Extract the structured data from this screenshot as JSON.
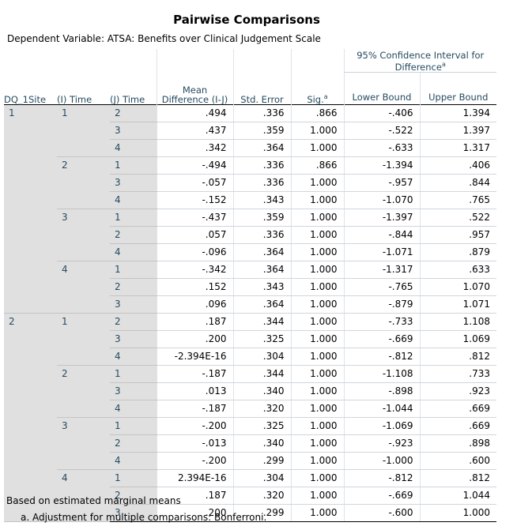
{
  "title": "Pairwise Comparisons",
  "dependent_variable": "Dependent Variable:   ATSA: Benefits over Clinical Judgement Scale",
  "headers": {
    "site": "DQ_1Site",
    "i_time": "(I) Time",
    "j_time": "(J) Time",
    "mean_diff": "Mean Difference (I-J)",
    "std_error": "Std. Error",
    "sig": "Sig.",
    "sig_sup": "a",
    "ci_group": "95% Confidence Interval for Difference",
    "ci_sup": "a",
    "lower": "Lower Bound",
    "upper": "Upper Bound"
  },
  "rows": [
    {
      "site": "1",
      "i": "1",
      "j": "2",
      "md": ".494",
      "se": ".336",
      "sig": ".866",
      "lb": "-.406",
      "ub": "1.394"
    },
    {
      "site": "",
      "i": "",
      "j": "3",
      "md": ".437",
      "se": ".359",
      "sig": "1.000",
      "lb": "-.522",
      "ub": "1.397"
    },
    {
      "site": "",
      "i": "",
      "j": "4",
      "md": ".342",
      "se": ".364",
      "sig": "1.000",
      "lb": "-.633",
      "ub": "1.317"
    },
    {
      "site": "",
      "i": "2",
      "j": "1",
      "md": "-.494",
      "se": ".336",
      "sig": ".866",
      "lb": "-1.394",
      "ub": ".406"
    },
    {
      "site": "",
      "i": "",
      "j": "3",
      "md": "-.057",
      "se": ".336",
      "sig": "1.000",
      "lb": "-.957",
      "ub": ".844"
    },
    {
      "site": "",
      "i": "",
      "j": "4",
      "md": "-.152",
      "se": ".343",
      "sig": "1.000",
      "lb": "-1.070",
      "ub": ".765"
    },
    {
      "site": "",
      "i": "3",
      "j": "1",
      "md": "-.437",
      "se": ".359",
      "sig": "1.000",
      "lb": "-1.397",
      "ub": ".522"
    },
    {
      "site": "",
      "i": "",
      "j": "2",
      "md": ".057",
      "se": ".336",
      "sig": "1.000",
      "lb": "-.844",
      "ub": ".957"
    },
    {
      "site": "",
      "i": "",
      "j": "4",
      "md": "-.096",
      "se": ".364",
      "sig": "1.000",
      "lb": "-1.071",
      "ub": ".879"
    },
    {
      "site": "",
      "i": "4",
      "j": "1",
      "md": "-.342",
      "se": ".364",
      "sig": "1.000",
      "lb": "-1.317",
      "ub": ".633"
    },
    {
      "site": "",
      "i": "",
      "j": "2",
      "md": ".152",
      "se": ".343",
      "sig": "1.000",
      "lb": "-.765",
      "ub": "1.070"
    },
    {
      "site": "",
      "i": "",
      "j": "3",
      "md": ".096",
      "se": ".364",
      "sig": "1.000",
      "lb": "-.879",
      "ub": "1.071"
    },
    {
      "site": "2",
      "i": "1",
      "j": "2",
      "md": ".187",
      "se": ".344",
      "sig": "1.000",
      "lb": "-.733",
      "ub": "1.108"
    },
    {
      "site": "",
      "i": "",
      "j": "3",
      "md": ".200",
      "se": ".325",
      "sig": "1.000",
      "lb": "-.669",
      "ub": "1.069"
    },
    {
      "site": "",
      "i": "",
      "j": "4",
      "md": "-2.394E-16",
      "se": ".304",
      "sig": "1.000",
      "lb": "-.812",
      "ub": ".812"
    },
    {
      "site": "",
      "i": "2",
      "j": "1",
      "md": "-.187",
      "se": ".344",
      "sig": "1.000",
      "lb": "-1.108",
      "ub": ".733"
    },
    {
      "site": "",
      "i": "",
      "j": "3",
      "md": ".013",
      "se": ".340",
      "sig": "1.000",
      "lb": "-.898",
      "ub": ".923"
    },
    {
      "site": "",
      "i": "",
      "j": "4",
      "md": "-.187",
      "se": ".320",
      "sig": "1.000",
      "lb": "-1.044",
      "ub": ".669"
    },
    {
      "site": "",
      "i": "3",
      "j": "1",
      "md": "-.200",
      "se": ".325",
      "sig": "1.000",
      "lb": "-1.069",
      "ub": ".669"
    },
    {
      "site": "",
      "i": "",
      "j": "2",
      "md": "-.013",
      "se": ".340",
      "sig": "1.000",
      "lb": "-.923",
      "ub": ".898"
    },
    {
      "site": "",
      "i": "",
      "j": "4",
      "md": "-.200",
      "se": ".299",
      "sig": "1.000",
      "lb": "-1.000",
      "ub": ".600"
    },
    {
      "site": "",
      "i": "4",
      "j": "1",
      "md": "2.394E-16",
      "se": ".304",
      "sig": "1.000",
      "lb": "-.812",
      "ub": ".812"
    },
    {
      "site": "",
      "i": "",
      "j": "2",
      "md": ".187",
      "se": ".320",
      "sig": "1.000",
      "lb": "-.669",
      "ub": "1.044"
    },
    {
      "site": "",
      "i": "",
      "j": "3",
      "md": ".200",
      "se": ".299",
      "sig": "1.000",
      "lb": "-.600",
      "ub": "1.000"
    }
  ],
  "footnotes": {
    "line1": "Based on estimated marginal means",
    "line2": "a. Adjustment for multiple comparisons: Bonferroni."
  },
  "colors": {
    "header_text": "#264a60",
    "label_bg": "#e0e0e0"
  }
}
